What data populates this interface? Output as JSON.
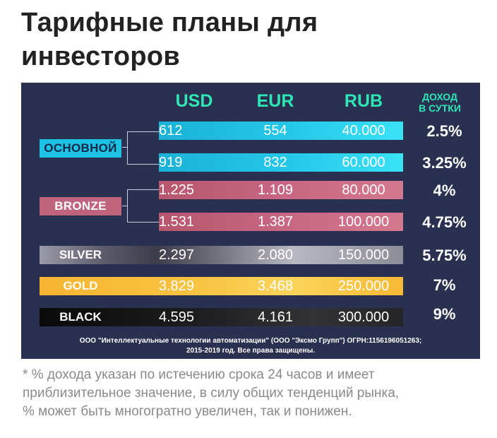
{
  "title_line1": "Тарифные планы для",
  "title_line2": "инвесторов",
  "table": {
    "headers": {
      "usd": "USD",
      "eur": "EUR",
      "rub": "RUB",
      "yield_line1": "ДОХОД",
      "yield_line2": "В СУТКИ"
    },
    "groups": {
      "osnovnoy": "ОСНОВНОЙ",
      "bronze": "BRONZE",
      "silver": "SILVER",
      "gold": "GOLD",
      "black": "BLACK"
    },
    "rows": [
      {
        "usd": "612",
        "eur": "554",
        "rub": "40.000",
        "yield": "2.5%"
      },
      {
        "usd": "919",
        "eur": "832",
        "rub": "60.000",
        "yield": "3.25%"
      },
      {
        "usd": "1.225",
        "eur": "1.109",
        "rub": "80.000",
        "yield": "4%"
      },
      {
        "usd": "1.531",
        "eur": "1.387",
        "rub": "100.000",
        "yield": "4.75%"
      },
      {
        "usd": "2.297",
        "eur": "2.080",
        "rub": "150.000",
        "yield": "5.75%"
      },
      {
        "usd": "3.829",
        "eur": "3.468",
        "rub": "250.000",
        "yield": "7%"
      },
      {
        "usd": "4.595",
        "eur": "4.161",
        "rub": "300.000",
        "yield": "9%"
      }
    ],
    "copyright_line1": "ООО \"Интеллектуальные технологии автоматизации\" (ООО \"Эксмо Групп\") ОГРН:1156196051263;",
    "copyright_line2": "2015-2019 год. Все права защищены."
  },
  "colors": {
    "panel": "#2a3050",
    "header": "#2ee6b6",
    "osnovnoy": "#1ec2e4",
    "bronze": "#c0637c",
    "silver": "#8a8a9a",
    "gold": "#f7b935",
    "black": "#111111"
  },
  "note_line1": "* % дохода указан по истечению срока 24 часов и имеет",
  "note_line2": "приблизительное значение, в силу общих тенденций рынка,",
  "note_line3": "% может быть многогратно увеличен, так и понижен."
}
